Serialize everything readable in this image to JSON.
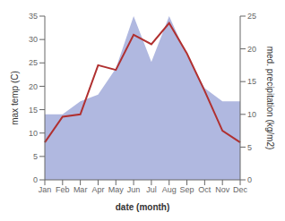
{
  "chart_data": {
    "type": "line",
    "categories": [
      "Jan",
      "Feb",
      "Mar",
      "Apr",
      "May",
      "Jun",
      "Jul",
      "Aug",
      "Sep",
      "Oct",
      "Nov",
      "Dec"
    ],
    "xlabel": "date (month)",
    "ylabel": "max temp (C)",
    "y2label": "med. precipitation (kg/m2)",
    "ylim": [
      0,
      35
    ],
    "yticks": [
      0,
      5,
      10,
      15,
      20,
      25,
      30,
      35
    ],
    "y2lim": [
      0,
      25
    ],
    "y2ticks": [
      0,
      5,
      10,
      15,
      20,
      25
    ],
    "series": [
      {
        "type": "area",
        "axis": "y2",
        "color": "#b0b8e0",
        "values": [
          10,
          10,
          12,
          13,
          17,
          25,
          18,
          25,
          19,
          14,
          12,
          12
        ]
      },
      {
        "type": "line",
        "color": "#b03030",
        "values": [
          8,
          13.5,
          14,
          24.5,
          23.5,
          31,
          29,
          33.5,
          27,
          19,
          10.5,
          8
        ]
      }
    ]
  }
}
